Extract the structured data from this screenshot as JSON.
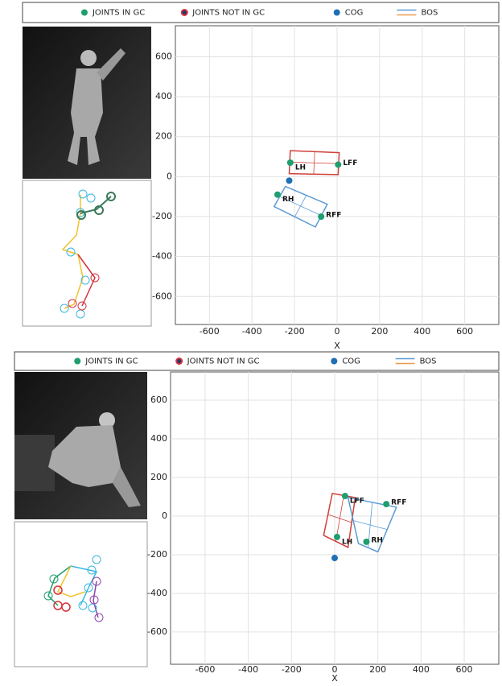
{
  "chart_data": [
    {
      "type": "scatter",
      "xlabel": "X",
      "xlim": [
        -760,
        760
      ],
      "ylim": [
        -740,
        755
      ],
      "xticks": [
        -600,
        -400,
        -200,
        0,
        200,
        400,
        600
      ],
      "yticks": [
        -600,
        -400,
        -200,
        0,
        200,
        400,
        600
      ],
      "grid": true,
      "series": [
        {
          "name": "JOINTS IN GC",
          "color": "#1f9e6e",
          "x": [
            -220,
            5,
            -280,
            -75
          ],
          "y": [
            70,
            60,
            -90,
            -200
          ],
          "labels": [
            "LH",
            "LFF",
            "RH",
            "RFF"
          ]
        },
        {
          "name": "JOINTS NOT IN GC",
          "color": "#d6303c"
        },
        {
          "name": "COG",
          "color": "#1f6fb5",
          "x": [
            -225
          ],
          "y": [
            -20
          ]
        },
        {
          "name": "BOS",
          "colors": [
            "#5b9bd5",
            "#ed9a4d"
          ],
          "polygons": [
            {
              "color": "#d0403a",
              "x": [
                -220,
                10,
                5,
                -225
              ],
              "y": [
                130,
                120,
                10,
                15
              ]
            },
            {
              "color": "#5b9bd5",
              "x": [
                -243,
                -46,
                -102,
                -296
              ],
              "y": [
                -49,
                -138,
                -252,
                -150
              ]
            }
          ]
        }
      ]
    },
    {
      "type": "scatter",
      "xlabel": "X",
      "xlim": [
        -760,
        760
      ],
      "ylim": [
        -767,
        746
      ],
      "xticks": [
        -600,
        -400,
        -200,
        0,
        200,
        400,
        600
      ],
      "yticks": [
        -600,
        -400,
        -200,
        0,
        200,
        400,
        600
      ],
      "grid": true,
      "series": [
        {
          "name": "JOINTS IN GC",
          "color": "#1f9e6e",
          "x": [
            48,
            239,
            11,
            147
          ],
          "y": [
            104,
            62,
            -108,
            -133
          ],
          "labels": [
            "LFF",
            "RFF",
            "LH",
            "RH"
          ]
        },
        {
          "name": "JOINTS NOT IN GC",
          "color": "#d6303c"
        },
        {
          "name": "COG",
          "color": "#1f6fb5",
          "x": [
            0
          ],
          "y": [
            -217
          ]
        },
        {
          "name": "BOS",
          "colors": [
            "#5b9bd5",
            "#ed9a4d"
          ],
          "polygons": [
            {
              "color": "#d0403a",
              "x": [
                -11,
                95,
                62,
                -51
              ],
              "y": [
                117,
                96,
                -162,
                -100
              ]
            },
            {
              "color": "#5b9bd5",
              "x": [
                62,
                286,
                200,
                110
              ],
              "y": [
                96,
                46,
                -185,
                -142
              ]
            }
          ]
        }
      ]
    }
  ]
}
